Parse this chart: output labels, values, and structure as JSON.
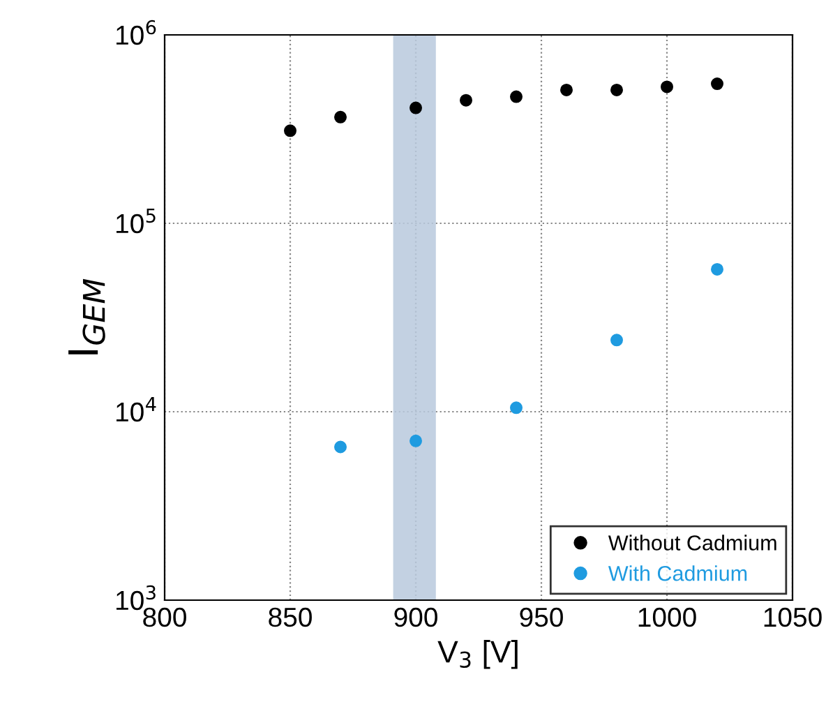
{
  "chart_data": {
    "type": "scatter",
    "xlabel": "V$_{3}$ [V]",
    "ylabel": "I$_{GEM}$",
    "log": "y",
    "grid": true,
    "legend": "bottom right",
    "marker": "circle",
    "xlim": [
      800,
      1050
    ],
    "xticks": [
      800,
      850,
      900,
      950,
      1000,
      1050
    ],
    "ylim": [
      1000,
      1000000
    ],
    "yticks": [
      {
        "value": 1000,
        "label": "10$^{3}$"
      },
      {
        "value": 10000,
        "label": "10$^{4}$"
      },
      {
        "value": 100000,
        "label": "10$^{5}$"
      },
      {
        "value": 1000000,
        "label": "10$^{6}$"
      }
    ],
    "bands": [
      {
        "axis": "x",
        "from": 891,
        "to": 908,
        "color": "#b9c9dd"
      }
    ],
    "series": [
      {
        "name": "Without Cadmium",
        "color": "#000000",
        "x": [
          850,
          870,
          900,
          920,
          940,
          960,
          980,
          1000,
          1020
        ],
        "values": [
          310000,
          366000,
          410000,
          450000,
          470000,
          510000,
          510000,
          530000,
          550000
        ]
      },
      {
        "name": "With Cadmium",
        "color": "#1f9be0",
        "x": [
          870,
          900,
          940,
          980,
          1020
        ],
        "values": [
          6500,
          7000,
          10500,
          24000,
          57000
        ]
      }
    ]
  }
}
